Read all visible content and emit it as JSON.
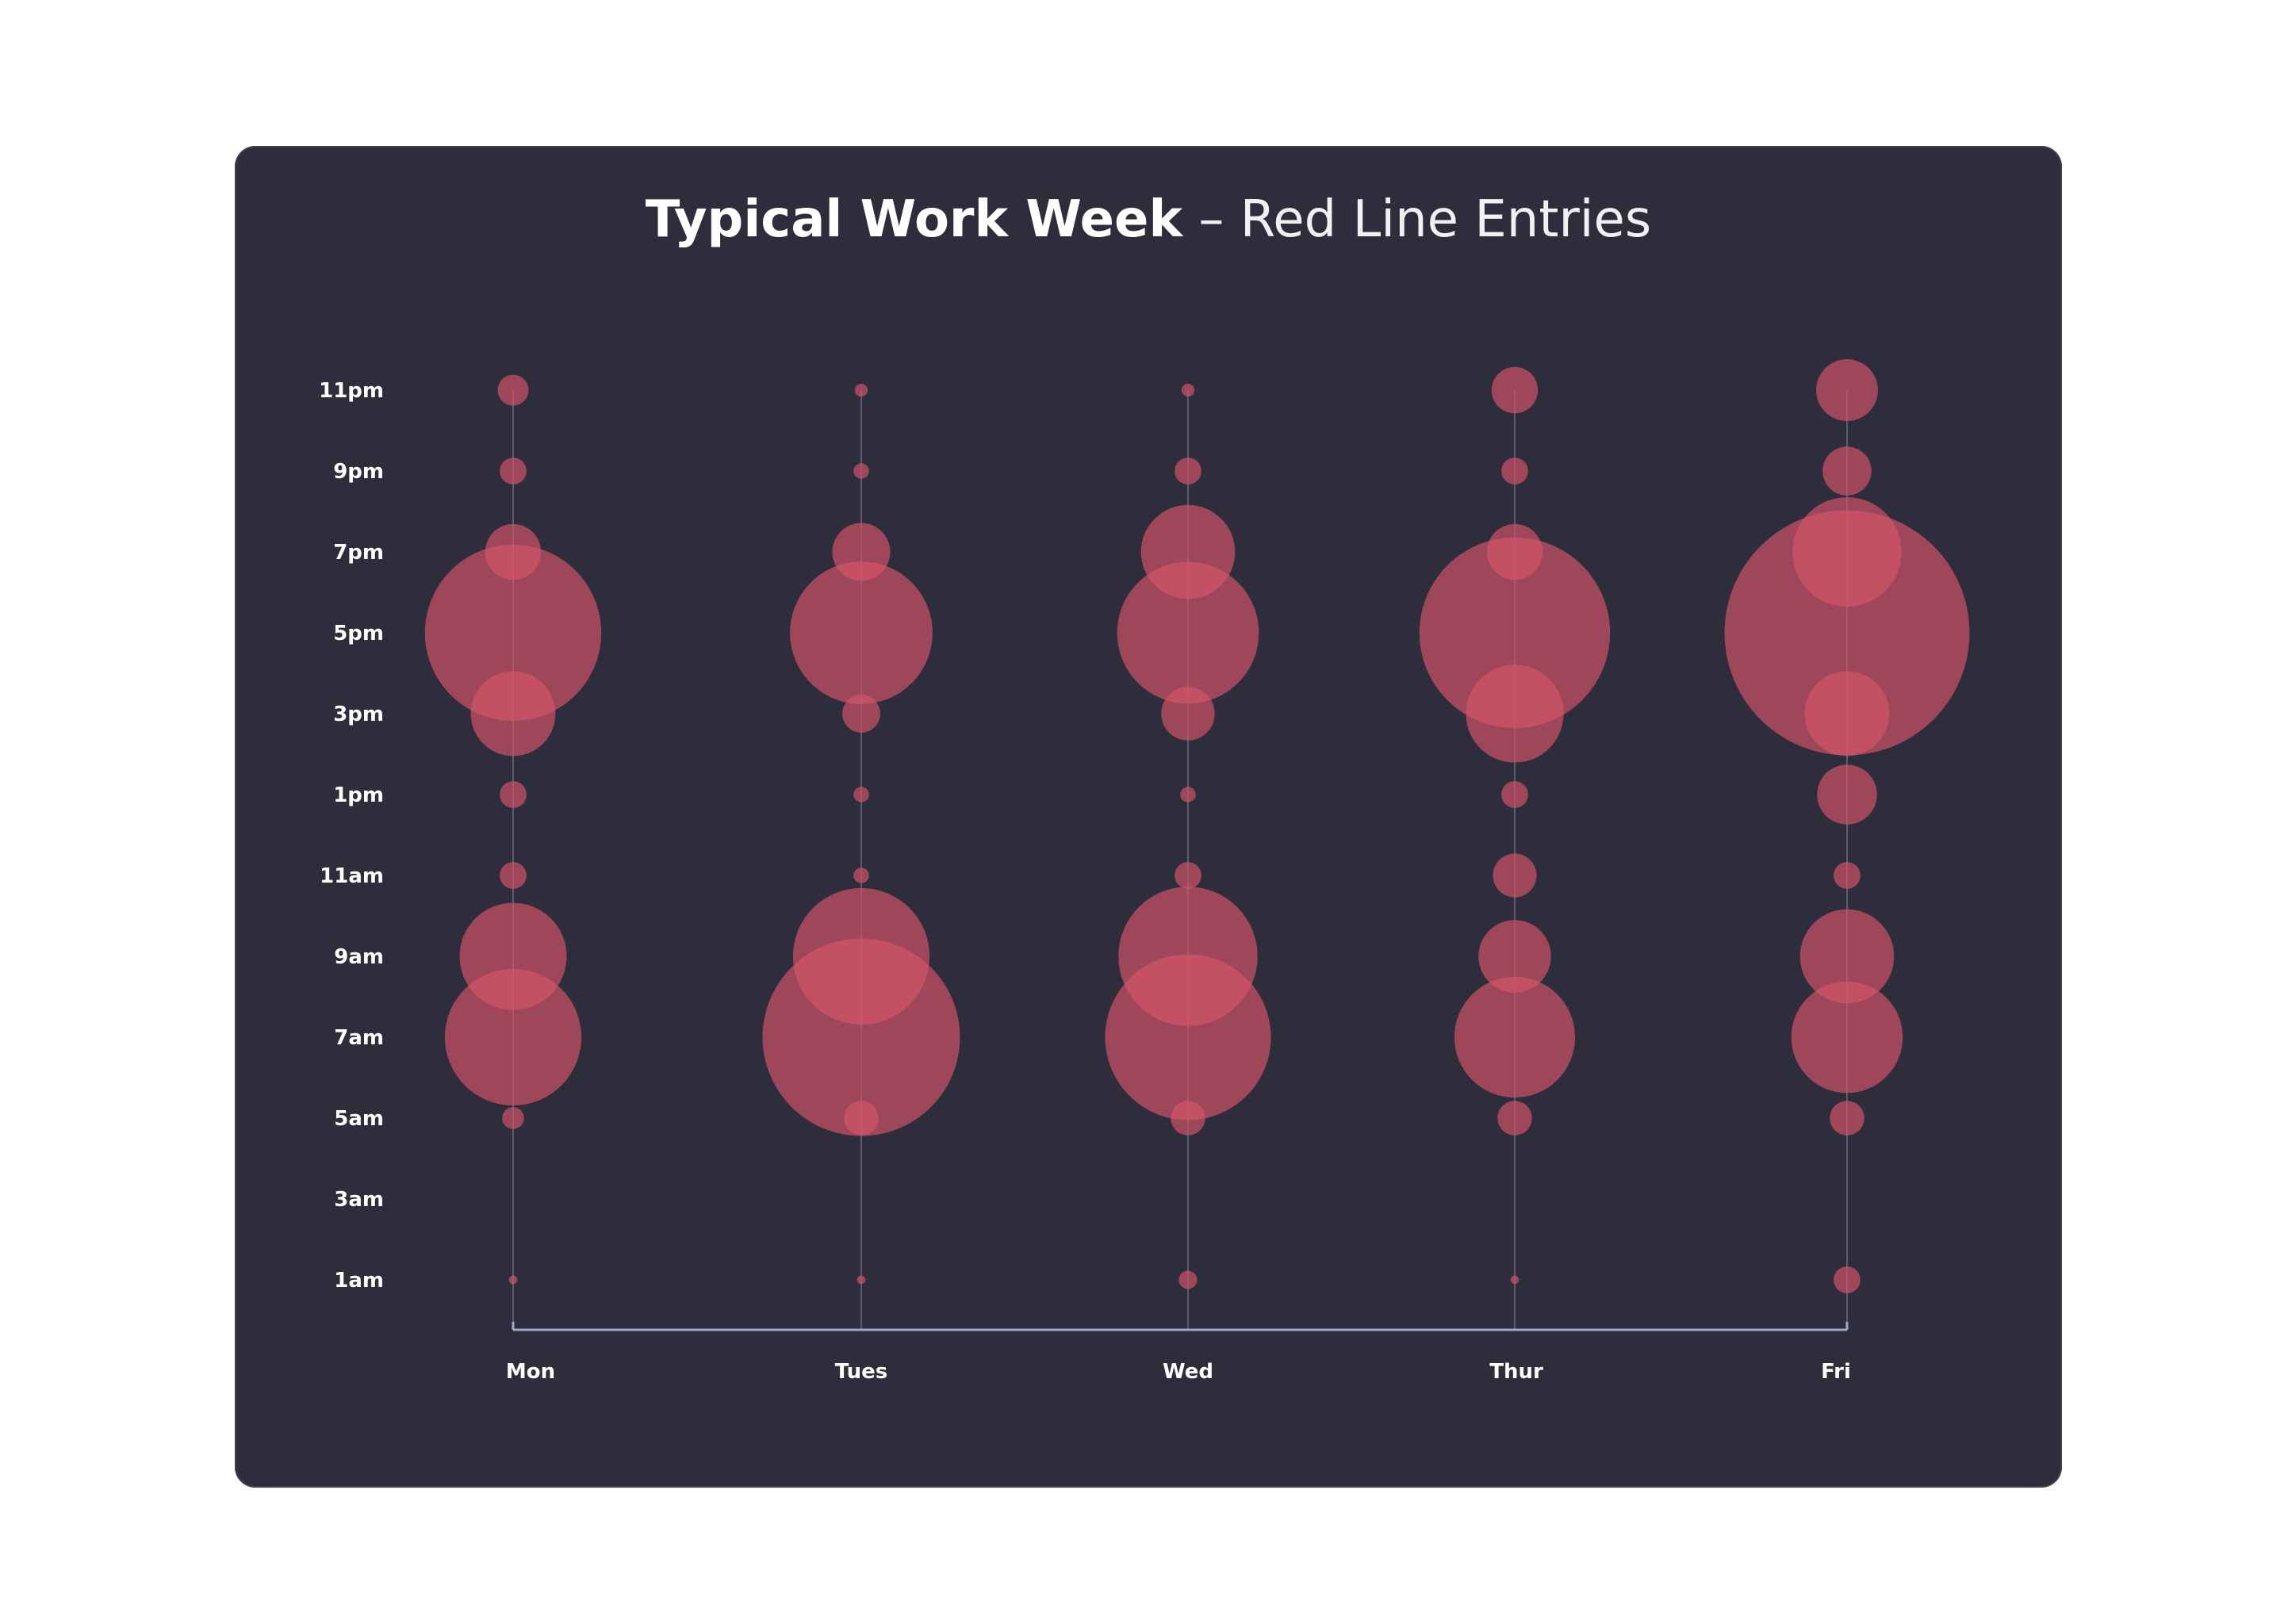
{
  "header": {
    "title_bold": "Typical Work Week",
    "title_rest": " – Red Line Entries"
  },
  "colors": {
    "background": "#2d2d3b",
    "bubble": "#d65468",
    "axis": "#a4a4c6",
    "guide": "#5c5c6e",
    "text": "#ffffff"
  },
  "chart_data": {
    "type": "scatter",
    "title": "Typical Work Week – Red Line Entries",
    "xlabel": "",
    "ylabel": "",
    "categories": [
      "Mon",
      "Tues",
      "Wed",
      "Thur",
      "Fri"
    ],
    "y_ticks": [
      {
        "label": "1am",
        "hour": 1
      },
      {
        "label": "3am",
        "hour": 3
      },
      {
        "label": "5am",
        "hour": 5
      },
      {
        "label": "7am",
        "hour": 7
      },
      {
        "label": "9am",
        "hour": 9
      },
      {
        "label": "11am",
        "hour": 11
      },
      {
        "label": "1pm",
        "hour": 13
      },
      {
        "label": "3pm",
        "hour": 15
      },
      {
        "label": "5pm",
        "hour": 17
      },
      {
        "label": "7pm",
        "hour": 19
      },
      {
        "label": "9pm",
        "hour": 21
      },
      {
        "label": "11pm",
        "hour": 23
      }
    ],
    "ylim": [
      1,
      23
    ],
    "size_encoding": "bubble area",
    "grid": false,
    "legend": "none",
    "series": [
      {
        "day": "Mon",
        "points": [
          {
            "hour": 1,
            "size": 0.3
          },
          {
            "hour": 5,
            "size": 2
          },
          {
            "hour": 7,
            "size": 78
          },
          {
            "hour": 9,
            "size": 48
          },
          {
            "hour": 11,
            "size": 3
          },
          {
            "hour": 13,
            "size": 3
          },
          {
            "hour": 15,
            "size": 30
          },
          {
            "hour": 17,
            "size": 130
          },
          {
            "hour": 19,
            "size": 13
          },
          {
            "hour": 21,
            "size": 3
          },
          {
            "hour": 23,
            "size": 4
          }
        ]
      },
      {
        "day": "Tues",
        "points": [
          {
            "hour": 1,
            "size": 0.3
          },
          {
            "hour": 5,
            "size": 5
          },
          {
            "hour": 7,
            "size": 163
          },
          {
            "hour": 9,
            "size": 78
          },
          {
            "hour": 11,
            "size": 1
          },
          {
            "hour": 13,
            "size": 1
          },
          {
            "hour": 15,
            "size": 6
          },
          {
            "hour": 17,
            "size": 85
          },
          {
            "hour": 19,
            "size": 14
          },
          {
            "hour": 21,
            "size": 1
          },
          {
            "hour": 23,
            "size": 0.7
          }
        ]
      },
      {
        "day": "Wed",
        "points": [
          {
            "hour": 1,
            "size": 1.4
          },
          {
            "hour": 5,
            "size": 5
          },
          {
            "hour": 7,
            "size": 115
          },
          {
            "hour": 9,
            "size": 81
          },
          {
            "hour": 11,
            "size": 3
          },
          {
            "hour": 13,
            "size": 1
          },
          {
            "hour": 15,
            "size": 12
          },
          {
            "hour": 17,
            "size": 84
          },
          {
            "hour": 19,
            "size": 37
          },
          {
            "hour": 21,
            "size": 3
          },
          {
            "hour": 23,
            "size": 0.7
          }
        ]
      },
      {
        "day": "Thur",
        "points": [
          {
            "hour": 1,
            "size": 0.3
          },
          {
            "hour": 5,
            "size": 5
          },
          {
            "hour": 7,
            "size": 61
          },
          {
            "hour": 9,
            "size": 22
          },
          {
            "hour": 11,
            "size": 8
          },
          {
            "hour": 13,
            "size": 3
          },
          {
            "hour": 15,
            "size": 40
          },
          {
            "hour": 17,
            "size": 152
          },
          {
            "hour": 19,
            "size": 13
          },
          {
            "hour": 21,
            "size": 3
          },
          {
            "hour": 23,
            "size": 9
          }
        ]
      },
      {
        "day": "Fri",
        "points": [
          {
            "hour": 1,
            "size": 3
          },
          {
            "hour": 5,
            "size": 5
          },
          {
            "hour": 7,
            "size": 52
          },
          {
            "hour": 9,
            "size": 37
          },
          {
            "hour": 11,
            "size": 3
          },
          {
            "hour": 13,
            "size": 15
          },
          {
            "hour": 15,
            "size": 30
          },
          {
            "hour": 17,
            "size": 251
          },
          {
            "hour": 19,
            "size": 50
          },
          {
            "hour": 21,
            "size": 10
          },
          {
            "hour": 23,
            "size": 16
          }
        ]
      }
    ]
  }
}
